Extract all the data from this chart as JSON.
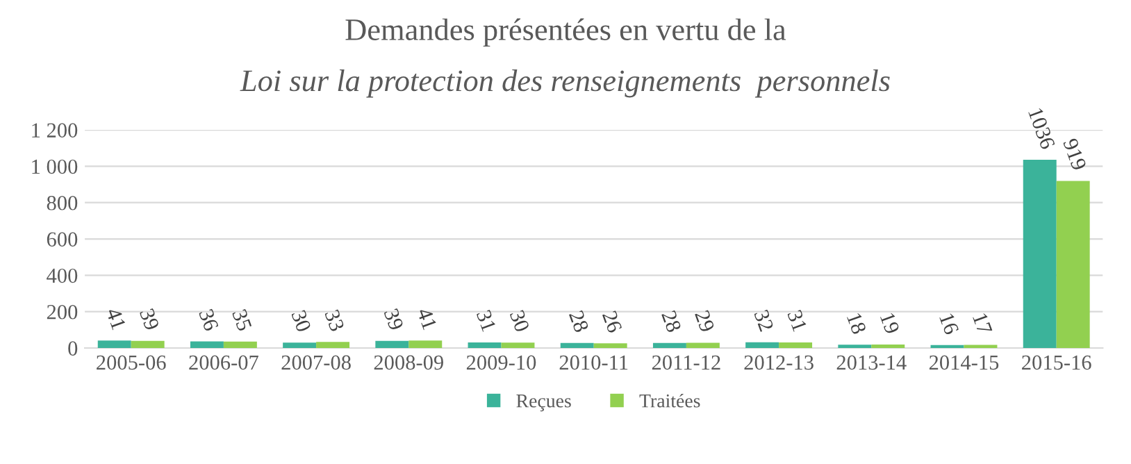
{
  "chart_data": {
    "type": "bar",
    "title": "Demandes présentées en vertu de la",
    "subtitle": "Loi sur la protection des renseignements  personnels",
    "categories": [
      "2005-06",
      "2006-07",
      "2007-08",
      "2008-09",
      "2009-10",
      "2010-11",
      "2011-12",
      "2012-13",
      "2013-14",
      "2014-15",
      "2015-16"
    ],
    "series": [
      {
        "name": "Reçues",
        "color": "#3bb39a",
        "values": [
          41,
          36,
          30,
          39,
          31,
          28,
          28,
          32,
          18,
          16,
          1036
        ]
      },
      {
        "name": "Traitées",
        "color": "#92d050",
        "values": [
          39,
          35,
          33,
          41,
          30,
          26,
          29,
          31,
          19,
          17,
          919
        ]
      }
    ],
    "ylim": [
      0,
      1200
    ],
    "yticks": [
      0,
      200,
      400,
      600,
      800,
      {
        "value": 1000,
        "label": "1 000"
      },
      {
        "value": 1200,
        "label": "1 200"
      }
    ],
    "grid": "y",
    "legend": "bottom",
    "data_labels": true
  }
}
